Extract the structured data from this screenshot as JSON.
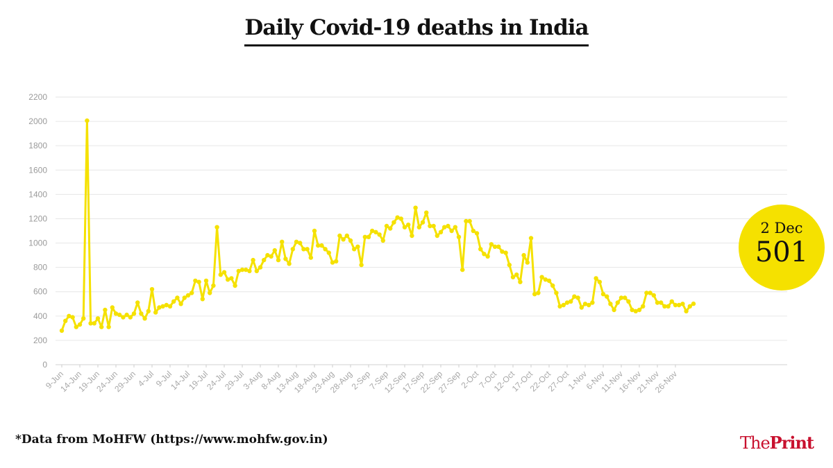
{
  "title": "Daily Covid-19 deaths in India",
  "footnote": "*Data from MoHFW (https://www.mohfw.gov.in)",
  "logo": {
    "part1": "The",
    "part2": "Print",
    "color": "#c8102e"
  },
  "highlight": {
    "date": "2 Dec",
    "value": "501",
    "color": "#f5e100"
  },
  "chart_data": {
    "type": "line",
    "title": "Daily Covid-19 deaths in India",
    "xlabel": "",
    "ylabel": "",
    "ylim": [
      0,
      2200
    ],
    "y_ticks": [
      0,
      200,
      400,
      600,
      800,
      1000,
      1200,
      1400,
      1600,
      1800,
      2000,
      2200
    ],
    "x_tick_labels": [
      "9-Jun",
      "14-Jun",
      "19-Jun",
      "24-Jun",
      "29-Jun",
      "4-Jul",
      "9-Jul",
      "14-Jul",
      "19-Jul",
      "24-Jul",
      "29-Jul",
      "3-Aug",
      "8-Aug",
      "13-Aug",
      "18-Aug",
      "23-Aug",
      "28-Aug",
      "2-Sep",
      "7-Sep",
      "12-Sep",
      "17-Sep",
      "22-Sep",
      "27-Sep",
      "2-Oct",
      "7-Oct",
      "12-Oct",
      "17-Oct",
      "22-Oct",
      "27-Oct",
      "1-Nov",
      "6-Nov",
      "11-Nov",
      "16-Nov",
      "21-Nov",
      "26-Nov"
    ],
    "grid": true,
    "line_color": "#f5e100",
    "series": [
      {
        "x_start": "9-Jun",
        "x_end": "2-Dec",
        "values": [
          280,
          360,
          400,
          390,
          310,
          330,
          380,
          2006,
          340,
          340,
          380,
          310,
          450,
          310,
          470,
          420,
          410,
          390,
          410,
          390,
          420,
          510,
          420,
          380,
          440,
          620,
          430,
          470,
          480,
          490,
          480,
          520,
          550,
          500,
          550,
          570,
          590,
          690,
          680,
          540,
          690,
          590,
          650,
          1130,
          740,
          760,
          700,
          710,
          650,
          770,
          780,
          780,
          770,
          860,
          770,
          800,
          860,
          900,
          890,
          940,
          860,
          1010,
          870,
          830,
          950,
          1010,
          1000,
          950,
          950,
          880,
          1100,
          980,
          980,
          950,
          920,
          840,
          850,
          1060,
          1030,
          1060,
          1020,
          950,
          970,
          820,
          1050,
          1050,
          1100,
          1090,
          1070,
          1020,
          1140,
          1120,
          1170,
          1210,
          1200,
          1130,
          1150,
          1060,
          1290,
          1130,
          1170,
          1250,
          1140,
          1140,
          1060,
          1090,
          1130,
          1140,
          1100,
          1130,
          1050,
          780,
          1180,
          1180,
          1100,
          1080,
          950,
          910,
          890,
          990,
          970,
          970,
          930,
          920,
          820,
          720,
          740,
          680,
          900,
          840,
          1040,
          580,
          590,
          720,
          700,
          690,
          650,
          590,
          480,
          490,
          510,
          520,
          560,
          550,
          470,
          500,
          490,
          510,
          710,
          680,
          580,
          560,
          500,
          450,
          510,
          550,
          550,
          520,
          450,
          440,
          450,
          480,
          590,
          590,
          570,
          510,
          510,
          480,
          480,
          520,
          490,
          490,
          500,
          440,
          480,
          501
        ]
      }
    ]
  }
}
